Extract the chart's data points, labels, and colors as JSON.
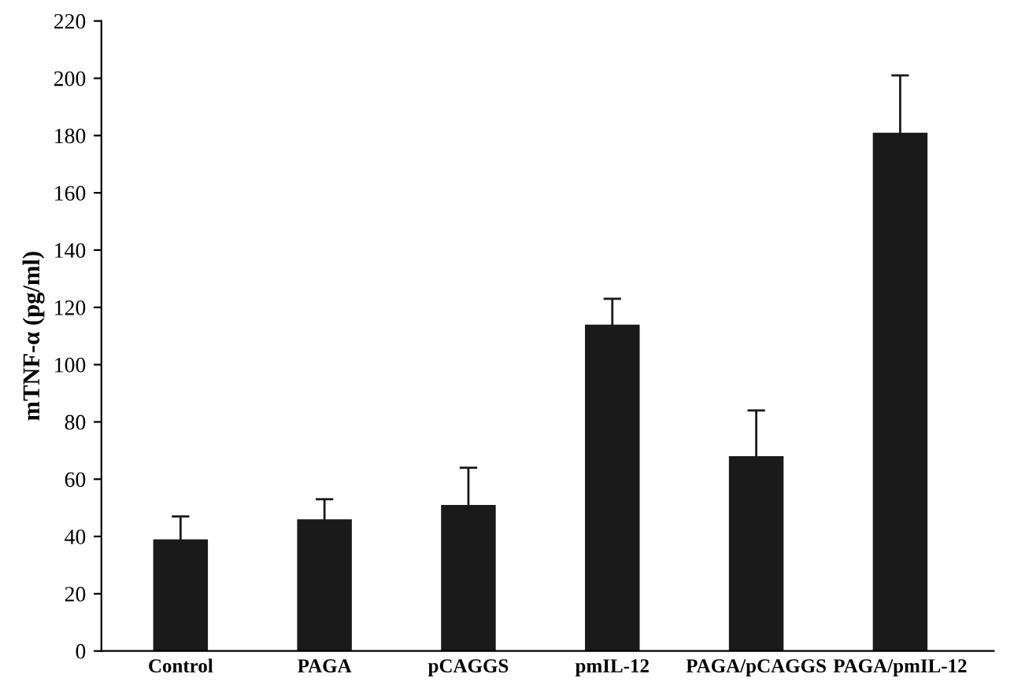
{
  "chart_data": {
    "type": "bar",
    "ylabel": "mTNF-α (pg/ml)",
    "categories": [
      "Control",
      "PAGA",
      "pCAGGS",
      "pmIL-12",
      "PAGA/pCAGGS",
      "PAGA/pmIL-12"
    ],
    "values": [
      39,
      46,
      51,
      114,
      68,
      181
    ],
    "errors": [
      8,
      7,
      13,
      9,
      16,
      20
    ],
    "color": "#1a1a1a",
    "ylim": [
      0,
      220
    ],
    "yticks": [
      0,
      20,
      40,
      60,
      80,
      100,
      120,
      140,
      160,
      180,
      200,
      220
    ],
    "grid": false
  }
}
